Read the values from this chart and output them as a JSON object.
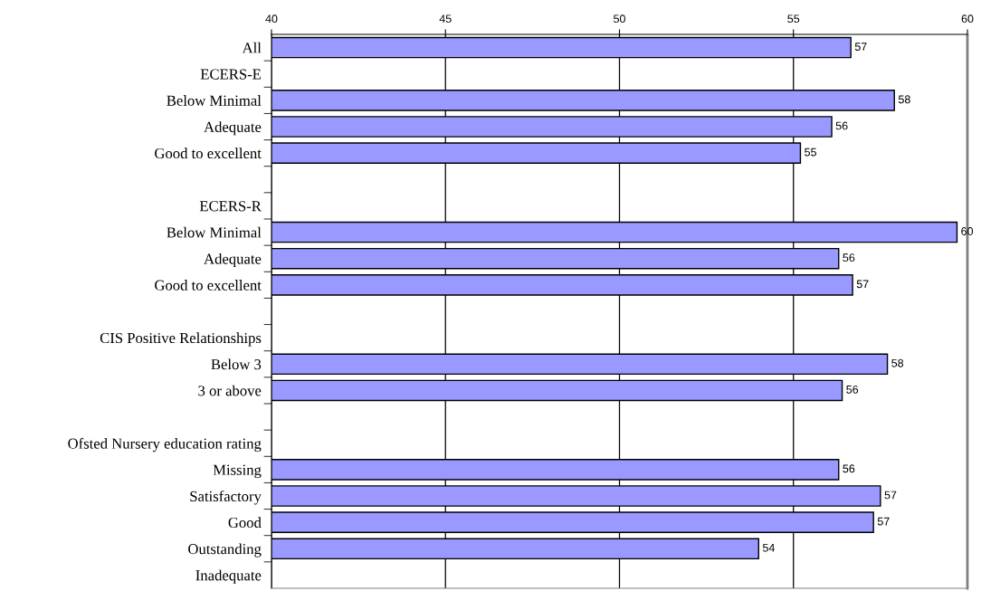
{
  "chart_data": {
    "type": "bar",
    "orientation": "horizontal",
    "categories": [
      "All",
      "ECERS-E",
      "Below Minimal",
      "Adequate",
      "Good to excellent",
      null,
      "ECERS-R",
      "Below Minimal",
      "Adequate",
      "Good to excellent",
      null,
      "CIS Positive Relationships",
      "Below 3",
      "3 or above",
      null,
      "Ofsted Nursery education rating",
      "Missing",
      "Satisfactory",
      "Good",
      "Outstanding",
      "Inadequate"
    ],
    "values": [
      56.65,
      null,
      57.9,
      56.1,
      55.2,
      null,
      null,
      59.7,
      56.3,
      56.7,
      null,
      null,
      57.7,
      56.4,
      null,
      null,
      56.3,
      57.5,
      57.3,
      54.0,
      null
    ],
    "value_labels": [
      "57",
      null,
      "58",
      "56",
      "55",
      null,
      null,
      "60",
      "56",
      "57",
      null,
      null,
      "58",
      "56",
      null,
      null,
      "56",
      "57",
      "57",
      "54",
      null
    ],
    "color": "#9999ff",
    "xlim": [
      40,
      60
    ],
    "xticks": [
      40,
      45,
      50,
      55,
      60
    ],
    "grid": "x",
    "legend": false
  }
}
